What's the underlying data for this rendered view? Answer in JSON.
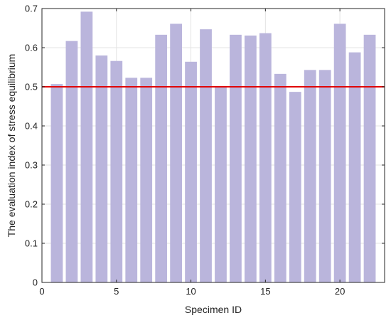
{
  "chart_data": {
    "type": "bar",
    "title": "",
    "xlabel": "Specimen ID",
    "ylabel": "The evaluation index of stress equilibrium",
    "x": [
      1,
      2,
      3,
      4,
      5,
      6,
      7,
      8,
      9,
      10,
      11,
      12,
      13,
      14,
      15,
      16,
      17,
      18,
      19,
      20,
      21,
      22
    ],
    "values": [
      0.507,
      0.617,
      0.692,
      0.58,
      0.566,
      0.523,
      0.523,
      0.633,
      0.661,
      0.564,
      0.647,
      0.5,
      0.633,
      0.631,
      0.637,
      0.533,
      0.487,
      0.543,
      0.543,
      0.661,
      0.588,
      0.633
    ],
    "xlim": [
      0,
      23
    ],
    "ylim": [
      0,
      0.7
    ],
    "xticks": [
      0,
      5,
      10,
      15,
      20
    ],
    "yticks": [
      0,
      0.1,
      0.2,
      0.3,
      0.4,
      0.5,
      0.6,
      0.7
    ],
    "reference_line": {
      "y": 0.5,
      "color": "#e00000"
    },
    "bar_color": "#bab5dc",
    "grid": true,
    "legend": "none"
  }
}
